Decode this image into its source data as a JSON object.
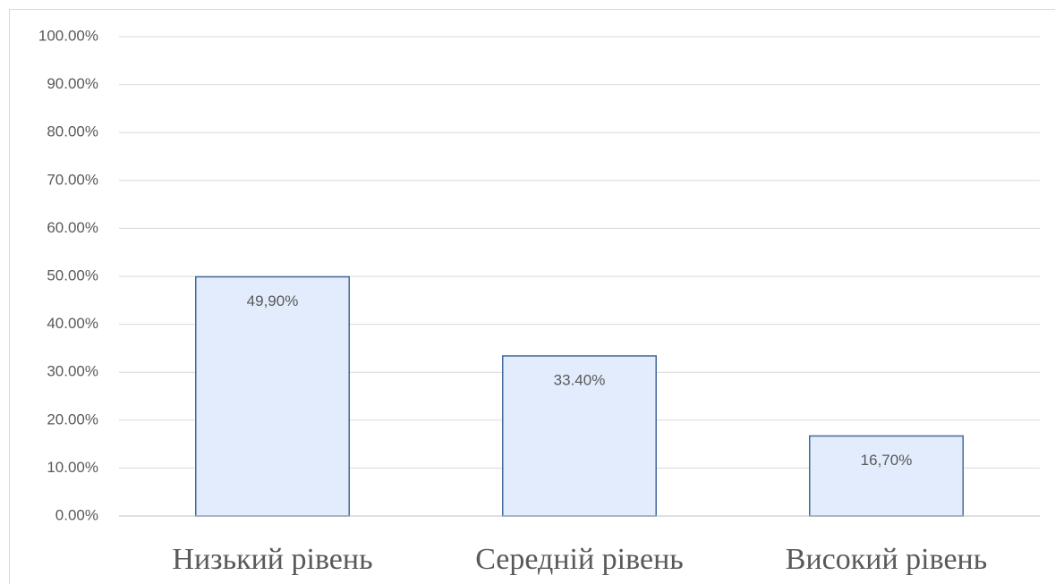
{
  "chart_data": {
    "type": "bar",
    "categories": [
      "Низький рівень",
      "Середній рівень",
      "Високий рівень"
    ],
    "values": [
      49.9,
      33.4,
      16.7
    ],
    "value_labels": [
      "49,90%",
      "33.40%",
      "16,70%"
    ],
    "color": "#e2ecfc",
    "ylim": [
      0,
      100
    ],
    "yticks": [
      {
        "value": 0,
        "label": "0.00%"
      },
      {
        "value": 10,
        "label": "10.00%"
      },
      {
        "value": 20,
        "label": "20.00%"
      },
      {
        "value": 30,
        "label": "30.00%"
      },
      {
        "value": 40,
        "label": "40.00%"
      },
      {
        "value": 50,
        "label": "50.00%"
      },
      {
        "value": 60,
        "label": "60.00%"
      },
      {
        "value": 70,
        "label": "70.00%"
      },
      {
        "value": 80,
        "label": "80.00%"
      },
      {
        "value": 90,
        "label": "90.00%"
      },
      {
        "value": 100,
        "label": "100.00%"
      }
    ],
    "grid": true
  }
}
